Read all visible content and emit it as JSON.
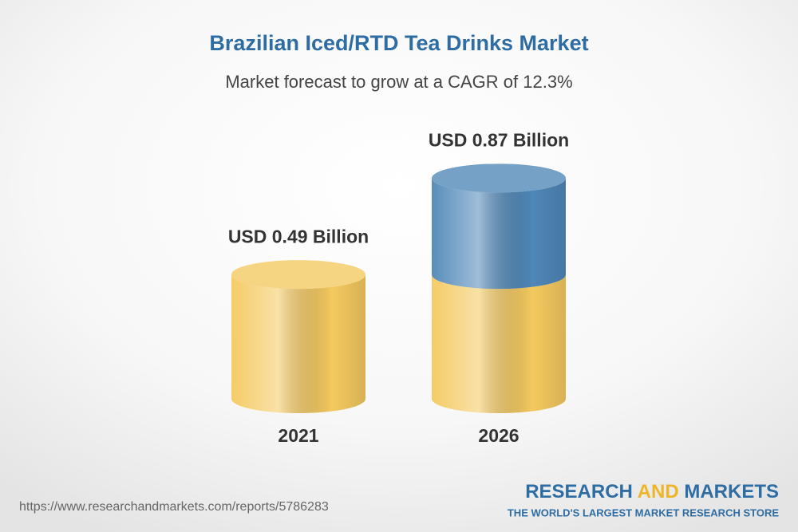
{
  "chart_data": {
    "type": "bar",
    "title": "Brazilian Iced/RTD Tea Drinks Market",
    "subtitle": "Market forecast to grow at a CAGR of 12.3%",
    "categories": [
      "2021",
      "2026"
    ],
    "values": [
      0.49,
      0.87
    ],
    "value_labels": [
      "USD 0.49 Billion",
      "USD 0.87 Billion"
    ],
    "color": "#f4c95f",
    "growth_color": "#4f87b8"
  },
  "source": "https://www.researchandmarkets.com/reports/5786283",
  "logo": {
    "parts": [
      "RESEARCH",
      "AND",
      "MARKETS"
    ],
    "tagline": "THE WORLD'S LARGEST MARKET RESEARCH STORE"
  }
}
